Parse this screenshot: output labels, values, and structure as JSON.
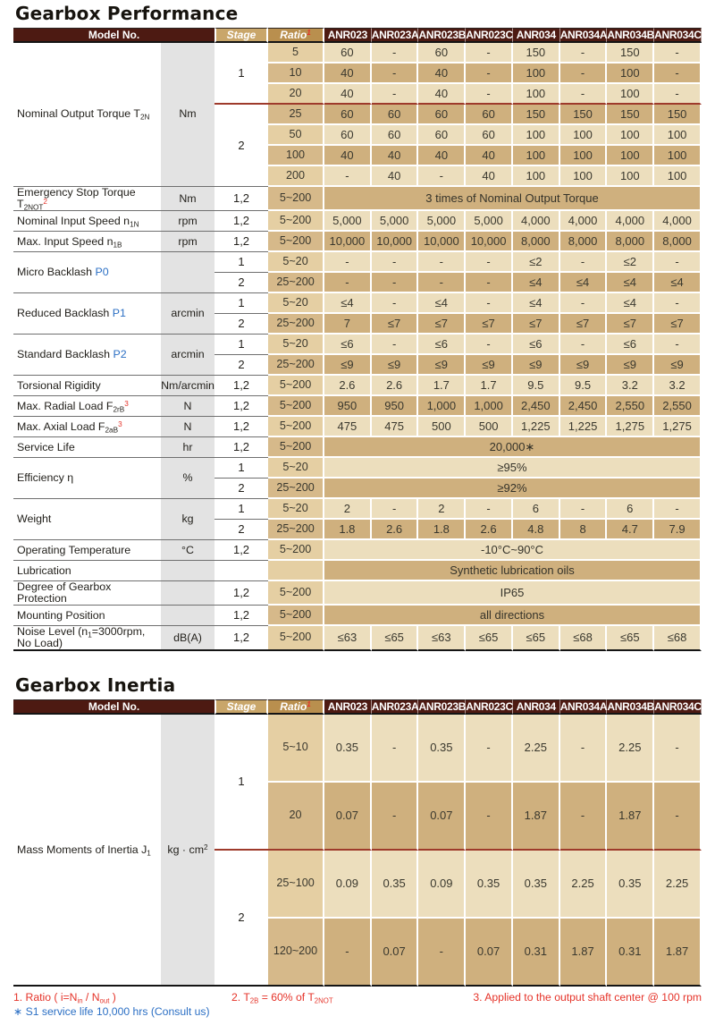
{
  "titles": {
    "performance": "Gearbox Performance",
    "inertia": "Gearbox Inertia"
  },
  "columns": {
    "model_no": "Model No.",
    "stage": "Stage",
    "ratio_parts": [
      {
        "t": "Ratio"
      },
      {
        "t": "1",
        "s": "sup",
        "c": "red"
      }
    ],
    "models": [
      "ANR023",
      "ANR023A",
      "ANR023B",
      "ANR023C",
      "ANR034",
      "ANR034A",
      "ANR034B",
      "ANR034C"
    ]
  },
  "colors": {
    "header_maroon": "#4d1a12",
    "stage_gold": "#c9a66a",
    "ratio_bronze": "#b98f4e",
    "row_light": "#ecdebd",
    "row_dark": "#cfb07e",
    "ratio_light": "#e5cfa3",
    "ratio_dark": "#d6b98a",
    "unit_gray": "#e3e3e3",
    "red_accent": "#e53329",
    "blue_accent": "#2b6fc4",
    "red_line": "#9e3a2b"
  },
  "performance_rows": [
    {
      "label": [
        {
          "t": "Nominal Output Torque T"
        },
        {
          "t": "2N",
          "s": "sub"
        }
      ],
      "labelRowspan": 7,
      "unit": [
        {
          "t": "Nm"
        }
      ],
      "unitRowspan": 7,
      "stage": "1",
      "stageRowspan": 3,
      "stageSep": "red",
      "ratio": "5",
      "values": [
        "60",
        "-",
        "60",
        "-",
        "150",
        "-",
        "150",
        "-"
      ],
      "shade": "light"
    },
    {
      "ratio": "10",
      "values": [
        "40",
        "-",
        "40",
        "-",
        "100",
        "-",
        "100",
        "-"
      ],
      "shade": "dark"
    },
    {
      "ratio": "20",
      "values": [
        "40",
        "-",
        "40",
        "-",
        "100",
        "-",
        "100",
        "-"
      ],
      "shade": "light",
      "sep": "red"
    },
    {
      "stage": "2",
      "stageRowspan": 4,
      "ratio": "25",
      "values": [
        "60",
        "60",
        "60",
        "60",
        "150",
        "150",
        "150",
        "150"
      ],
      "shade": "dark"
    },
    {
      "ratio": "50",
      "values": [
        "60",
        "60",
        "60",
        "60",
        "100",
        "100",
        "100",
        "100"
      ],
      "shade": "light"
    },
    {
      "ratio": "100",
      "values": [
        "40",
        "40",
        "40",
        "40",
        "100",
        "100",
        "100",
        "100"
      ],
      "shade": "dark"
    },
    {
      "ratio": "200",
      "values": [
        "-",
        "40",
        "-",
        "40",
        "100",
        "100",
        "100",
        "100"
      ],
      "shade": "light"
    },
    {
      "label": [
        {
          "t": "Emergency Stop Torque T"
        },
        {
          "t": "2NOT",
          "s": "sub"
        },
        {
          "t": "2",
          "s": "sup",
          "c": "red"
        }
      ],
      "unit": [
        {
          "t": "Nm"
        }
      ],
      "stage": "1,2",
      "ratio": "5~200",
      "merged": "3 times of Nominal Output Torque",
      "shade": "dark"
    },
    {
      "label": [
        {
          "t": "Nominal Input Speed n"
        },
        {
          "t": "1N",
          "s": "sub"
        }
      ],
      "unit": [
        {
          "t": "rpm"
        }
      ],
      "stage": "1,2",
      "ratio": "5~200",
      "values": [
        "5,000",
        "5,000",
        "5,000",
        "5,000",
        "4,000",
        "4,000",
        "4,000",
        "4,000"
      ],
      "shade": "light"
    },
    {
      "label": [
        {
          "t": "Max. Input Speed n"
        },
        {
          "t": "1B",
          "s": "sub"
        }
      ],
      "unit": [
        {
          "t": "rpm"
        }
      ],
      "stage": "1,2",
      "ratio": "5~200",
      "values": [
        "10,000",
        "10,000",
        "10,000",
        "10,000",
        "8,000",
        "8,000",
        "8,000",
        "8,000"
      ],
      "shade": "dark"
    },
    {
      "label": [
        {
          "t": "Micro Backlash "
        },
        {
          "t": "P0",
          "c": "blue"
        }
      ],
      "labelRowspan": 2,
      "unit": [
        {
          "t": ""
        }
      ],
      "unitRowspan": 2,
      "stage": "1",
      "ratio": "5~20",
      "values": [
        "-",
        "-",
        "-",
        "-",
        "≤2",
        "-",
        "≤2",
        "-"
      ],
      "shade": "light"
    },
    {
      "stage": "2",
      "ratio": "25~200",
      "values": [
        "-",
        "-",
        "-",
        "-",
        "≤4",
        "≤4",
        "≤4",
        "≤4"
      ],
      "shade": "dark"
    },
    {
      "label": [
        {
          "t": "Reduced Backlash "
        },
        {
          "t": "P1",
          "c": "blue"
        }
      ],
      "labelRowspan": 2,
      "unit": [
        {
          "t": "arcmin"
        }
      ],
      "unitRowspan": 2,
      "stage": "1",
      "ratio": "5~20",
      "values": [
        "≤4",
        "-",
        "≤4",
        "-",
        "≤4",
        "-",
        "≤4",
        "-"
      ],
      "shade": "light"
    },
    {
      "stage": "2",
      "ratio": "25~200",
      "values": [
        "7",
        "≤7",
        "≤7",
        "≤7",
        "≤7",
        "≤7",
        "≤7",
        "≤7"
      ],
      "shade": "dark"
    },
    {
      "label": [
        {
          "t": "Standard Backlash "
        },
        {
          "t": "P2",
          "c": "blue"
        }
      ],
      "labelRowspan": 2,
      "unit": [
        {
          "t": "arcmin"
        }
      ],
      "unitRowspan": 2,
      "stage": "1",
      "ratio": "5~20",
      "values": [
        "≤6",
        "-",
        "≤6",
        "-",
        "≤6",
        "-",
        "≤6",
        "-"
      ],
      "shade": "light"
    },
    {
      "stage": "2",
      "ratio": "25~200",
      "values": [
        "≤9",
        "≤9",
        "≤9",
        "≤9",
        "≤9",
        "≤9",
        "≤9",
        "≤9"
      ],
      "shade": "dark"
    },
    {
      "label": [
        {
          "t": "Torsional Rigidity"
        }
      ],
      "unit": [
        {
          "t": "Nm/arcmin"
        }
      ],
      "stage": "1,2",
      "ratio": "5~200",
      "values": [
        "2.6",
        "2.6",
        "1.7",
        "1.7",
        "9.5",
        "9.5",
        "3.2",
        "3.2"
      ],
      "shade": "light"
    },
    {
      "label": [
        {
          "t": "Max. Radial Load F"
        },
        {
          "t": "2rB",
          "s": "sub"
        },
        {
          "t": "3",
          "s": "sup",
          "c": "red"
        }
      ],
      "unit": [
        {
          "t": "N"
        }
      ],
      "stage": "1,2",
      "ratio": "5~200",
      "values": [
        "950",
        "950",
        "1,000",
        "1,000",
        "2,450",
        "2,450",
        "2,550",
        "2,550"
      ],
      "shade": "dark"
    },
    {
      "label": [
        {
          "t": "Max. Axial Load F"
        },
        {
          "t": "2aB",
          "s": "sub"
        },
        {
          "t": "3",
          "s": "sup",
          "c": "red"
        }
      ],
      "unit": [
        {
          "t": "N"
        }
      ],
      "stage": "1,2",
      "ratio": "5~200",
      "values": [
        "475",
        "475",
        "500",
        "500",
        "1,225",
        "1,225",
        "1,275",
        "1,275"
      ],
      "shade": "light"
    },
    {
      "label": [
        {
          "t": "Service Life"
        }
      ],
      "unit": [
        {
          "t": "hr"
        }
      ],
      "stage": "1,2",
      "ratio": "5~200",
      "merged": "20,000∗",
      "shade": "dark"
    },
    {
      "label": [
        {
          "t": "Efficiency η"
        }
      ],
      "labelRowspan": 2,
      "unit": [
        {
          "t": "%"
        }
      ],
      "unitRowspan": 2,
      "stage": "1",
      "ratio": "5~20",
      "merged": "≥95%",
      "shade": "light"
    },
    {
      "stage": "2",
      "ratio": "25~200",
      "merged": "≥92%",
      "shade": "dark"
    },
    {
      "label": [
        {
          "t": "Weight"
        }
      ],
      "labelRowspan": 2,
      "unit": [
        {
          "t": "kg"
        }
      ],
      "unitRowspan": 2,
      "stage": "1",
      "ratio": "5~20",
      "values": [
        "2",
        "-",
        "2",
        "-",
        "6",
        "-",
        "6",
        "-"
      ],
      "shade": "light"
    },
    {
      "stage": "2",
      "ratio": "25~200",
      "values": [
        "1.8",
        "2.6",
        "1.8",
        "2.6",
        "4.8",
        "8",
        "4.7",
        "7.9"
      ],
      "shade": "dark"
    },
    {
      "label": [
        {
          "t": "Operating Temperature"
        }
      ],
      "unit": [
        {
          "t": "°C"
        }
      ],
      "stage": "1,2",
      "ratio": "5~200",
      "merged": "-10°C~90°C",
      "shade": "light"
    },
    {
      "label": [
        {
          "t": "Lubrication"
        }
      ],
      "unit": [
        {
          "t": ""
        }
      ],
      "stage": "",
      "ratio": "",
      "merged": "Synthetic lubrication oils",
      "shade": "dark",
      "ratioShade": "light"
    },
    {
      "label": [
        {
          "t": "Degree of Gearbox Protection"
        }
      ],
      "unit": [
        {
          "t": ""
        }
      ],
      "stage": "1,2",
      "ratio": "5~200",
      "merged": "IP65",
      "shade": "light"
    },
    {
      "label": [
        {
          "t": "Mounting Position"
        }
      ],
      "unit": [
        {
          "t": ""
        }
      ],
      "stage": "1,2",
      "ratio": "5~200",
      "merged": "all directions",
      "shade": "dark"
    },
    {
      "label": [
        {
          "t": "Noise Level (n"
        },
        {
          "t": "1",
          "s": "sub"
        },
        {
          "t": "=3000rpm, No Load)"
        }
      ],
      "unit": [
        {
          "t": "dB(A)"
        }
      ],
      "stage": "1,2",
      "ratio": "5~200",
      "values": [
        "≤63",
        "≤65",
        "≤63",
        "≤65",
        "≤65",
        "≤68",
        "≤65",
        "≤68"
      ],
      "shade": "light",
      "sep": "last"
    }
  ],
  "inertia_rows": [
    {
      "label": [
        {
          "t": "Mass Moments of Inertia J"
        },
        {
          "t": "1",
          "s": "sub"
        }
      ],
      "labelRowspan": 4,
      "labelSep": "last",
      "unit": [
        {
          "t": "kg · cm"
        },
        {
          "t": "2",
          "s": "sup"
        }
      ],
      "unitRowspan": 4,
      "unitSep": "last",
      "stage": "1",
      "stageRowspan": 2,
      "stageSep": "red",
      "ratio": "5~10",
      "values": [
        "0.35",
        "-",
        "0.35",
        "-",
        "2.25",
        "-",
        "2.25",
        "-"
      ],
      "shade": "light"
    },
    {
      "ratio": "20",
      "values": [
        "0.07",
        "-",
        "0.07",
        "-",
        "1.87",
        "-",
        "1.87",
        "-"
      ],
      "shade": "dark",
      "sep": "red"
    },
    {
      "stage": "2",
      "stageRowspan": 2,
      "stageSep": "last",
      "ratio": "25~100",
      "values": [
        "0.09",
        "0.35",
        "0.09",
        "0.35",
        "0.35",
        "2.25",
        "0.35",
        "2.25"
      ],
      "shade": "light"
    },
    {
      "ratio": "120~200",
      "values": [
        "-",
        "0.07",
        "-",
        "0.07",
        "0.31",
        "1.87",
        "0.31",
        "1.87"
      ],
      "shade": "dark",
      "sep": "last"
    }
  ],
  "footnotes": {
    "note1": [
      {
        "t": "1. Ratio ( i=N"
      },
      {
        "t": "in",
        "s": "sub"
      },
      {
        "t": " / N"
      },
      {
        "t": "out",
        "s": "sub"
      },
      {
        "t": " )"
      }
    ],
    "note2": [
      {
        "t": "2. T"
      },
      {
        "t": "2B",
        "s": "sub"
      },
      {
        "t": " = 60% of  T"
      },
      {
        "t": "2NOT",
        "s": "sub"
      }
    ],
    "note3": [
      {
        "t": "3. Applied to the output shaft center @ 100 rpm"
      }
    ],
    "note4": [
      {
        "t": "∗ S1 service life 10,000 hrs (Consult us)"
      }
    ]
  }
}
